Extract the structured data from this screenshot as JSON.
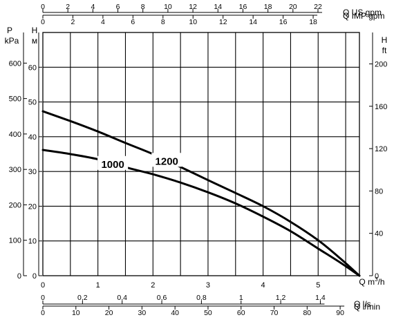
{
  "chart_data": {
    "type": "line",
    "title": "",
    "plot": {
      "x_axis": {
        "label": "Q m³/h",
        "label_parts": {
          "q": "Q",
          "unit": "m",
          "sup": "3",
          "rest": "/h"
        },
        "range": [
          0,
          5.75
        ],
        "ticks": [
          0,
          1,
          2,
          3,
          4,
          5
        ],
        "tick_labels": [
          "0",
          "1",
          "2",
          "3",
          "4",
          "5"
        ]
      },
      "y_axis": {
        "label": "H m",
        "label_top": "H",
        "label_bottom": "м",
        "range": [
          0,
          70
        ],
        "ticks": [
          0,
          10,
          20,
          30,
          40,
          50,
          60
        ],
        "tick_labels": [
          "0",
          "10",
          "20",
          "30",
          "40",
          "50",
          "60"
        ]
      },
      "grid": true
    },
    "secondary_axes": [
      {
        "id": "us-gpm",
        "position": "top",
        "label": "Q US gpm",
        "ticks": [
          0,
          2,
          4,
          6,
          8,
          10,
          12,
          14,
          16,
          18,
          20,
          22
        ],
        "tick_labels": [
          "0",
          "2",
          "4",
          "6",
          "8",
          "10",
          "12",
          "14",
          "16",
          "18",
          "20",
          "22"
        ],
        "factor_per_m3h": 4.4029
      },
      {
        "id": "imp-gpm",
        "position": "top",
        "label": "Q IMP gpm",
        "ticks": [
          0,
          2,
          4,
          6,
          8,
          10,
          12,
          14,
          16,
          18
        ],
        "tick_labels": [
          "0",
          "2",
          "4",
          "6",
          "8",
          "10",
          "12",
          "14",
          "16",
          "18"
        ],
        "factor_per_m3h": 3.6662
      },
      {
        "id": "ls",
        "position": "bottom",
        "label": "Q l/s",
        "ticks": [
          0,
          0.2,
          0.4,
          0.6,
          0.8,
          1,
          1.2,
          1.4
        ],
        "tick_labels": [
          "0",
          "0,2",
          "0,4",
          "0,6",
          "0,8",
          "1",
          "1,2",
          "1,4"
        ],
        "factor_per_m3h": 0.27778
      },
      {
        "id": "lmin",
        "position": "bottom",
        "label": "Q l/min",
        "ticks": [
          0,
          10,
          20,
          30,
          40,
          50,
          60,
          70,
          80,
          90
        ],
        "tick_labels": [
          "0",
          "10",
          "20",
          "30",
          "40",
          "50",
          "60",
          "70",
          "80",
          "90"
        ],
        "factor_per_m3h": 16.667
      },
      {
        "id": "kpa",
        "position": "left",
        "label_top": "P",
        "label_bottom": "kPa",
        "ticks": [
          0,
          100,
          200,
          300,
          400,
          500,
          600
        ],
        "tick_labels": [
          "0",
          "100",
          "200",
          "300",
          "400",
          "500",
          "600"
        ],
        "factor_per_m": 9.8067
      },
      {
        "id": "ft",
        "position": "right",
        "label_top": "H",
        "label_bottom": "ft",
        "ticks": [
          0,
          40,
          80,
          120,
          160,
          200
        ],
        "tick_labels": [
          "0",
          "40",
          "80",
          "120",
          "160",
          "200"
        ],
        "factor_per_m": 3.2808
      }
    ],
    "series": [
      {
        "name": "1000",
        "x": [
          0,
          0.5,
          1,
          1.5,
          2,
          2.5,
          3,
          3.5,
          4,
          4.5,
          5,
          5.4,
          5.75
        ],
        "y": [
          36.2,
          35.0,
          33.5,
          31.2,
          29.2,
          26.8,
          24.0,
          20.8,
          17.0,
          12.8,
          7.8,
          3.8,
          0
        ],
        "label_at": 1.27
      },
      {
        "name": "1200",
        "x": [
          0,
          0.5,
          1,
          1.5,
          2,
          2.5,
          3,
          3.5,
          4,
          4.5,
          5,
          5.4,
          5.75
        ],
        "y": [
          47.3,
          44.5,
          41.5,
          38.2,
          35.0,
          31.3,
          27.5,
          23.8,
          20.0,
          15.5,
          10.2,
          5.0,
          0
        ],
        "label_at": 2.25
      }
    ]
  }
}
